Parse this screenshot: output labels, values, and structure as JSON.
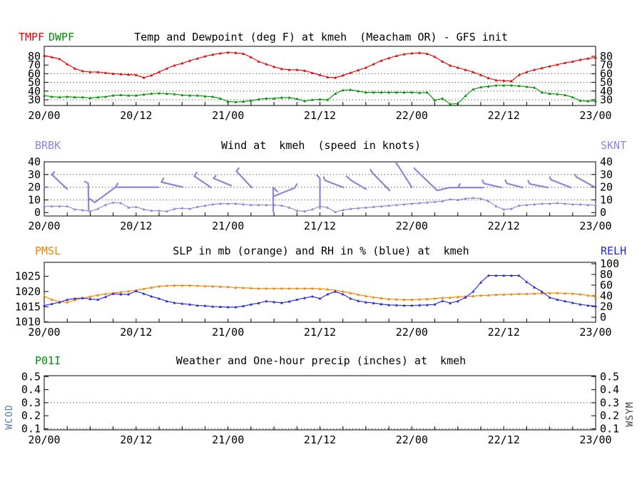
{
  "colors": {
    "red": "#e60000",
    "green": "#009100",
    "purple": "#9184d6",
    "orange": "#f08200",
    "blue": "#2424dd",
    "frame": "#000000",
    "wcod": "#4f7da0",
    "wsym": "#404040"
  },
  "panels": [
    {
      "left_labels": [
        "TMPF",
        "DWPF"
      ],
      "title": "Temp and Dewpoint (deg F) at kmeh  (Meacham OR) - GFS init"
    },
    {
      "left_labels": [
        "BRBK"
      ],
      "right_label": "SKNT",
      "title": "Wind at  kmeh  (speed in knots)"
    },
    {
      "left_labels": [
        "PMSL"
      ],
      "right_label": "RELH",
      "title": "SLP in mb (orange) and RH in % (blue) at  kmeh"
    },
    {
      "left_labels": [
        "P01I"
      ],
      "title": "Weather and One-hour precip (inches) at  kmeh",
      "left_vertical_label": "WCOD",
      "right_vertical_label": "WSYM"
    }
  ],
  "chart_data": {
    "x": {
      "range": [
        0,
        72
      ],
      "tick_every_hours": 3,
      "label_hours": [
        0,
        12,
        24,
        36,
        48,
        60,
        72
      ],
      "labels": [
        "20/00",
        "20/12",
        "21/00",
        "21/12",
        "22/00",
        "22/12",
        "23/00"
      ]
    },
    "panels": [
      {
        "type": "line",
        "title": "Temp and Dewpoint (deg F) at kmeh  (Meacham OR) - GFS init",
        "ylim": [
          23.4,
          91.5
        ],
        "yticks": [
          30,
          40,
          50,
          60,
          70,
          80
        ],
        "grid": [
          30,
          40,
          50,
          60
        ],
        "series": [
          {
            "name": "TMPF",
            "color_key": "red",
            "values": [
              81,
              79,
              77,
              71,
              66,
              63,
              62,
              62,
              61,
              60,
              59.5,
              59,
              58.5,
              55.5,
              58,
              62,
              66,
              69.5,
              72,
              75,
              77.5,
              80,
              82,
              83.5,
              84.5,
              84,
              83,
              79,
              74,
              71,
              68,
              65.5,
              64.5,
              64.5,
              63.5,
              61,
              58.5,
              56,
              55.5,
              58,
              61,
              64,
              67,
              71,
              75,
              78,
              80.5,
              82.5,
              83.5,
              84,
              83,
              79.5,
              74,
              69.5,
              67,
              64.5,
              62,
              58.5,
              55,
              52.5,
              52,
              51.5,
              58.5,
              62,
              64.5,
              66.5,
              68.5,
              70.5,
              72.5,
              74,
              76,
              77.5,
              78.5
            ]
          },
          {
            "name": "DWPF",
            "color_key": "green",
            "values": [
              35,
              33.5,
              33,
              33.5,
              33,
              33,
              32,
              33,
              33.5,
              35,
              35.5,
              35,
              35,
              36,
              37,
              37.5,
              37,
              36.5,
              35.5,
              35,
              35,
              34,
              33.5,
              31.5,
              28,
              27.5,
              28,
              29,
              30.5,
              31.5,
              31.5,
              32.5,
              32.5,
              31,
              28.5,
              30,
              30.5,
              30,
              37,
              41,
              41.5,
              40,
              38.5,
              38.5,
              38.5,
              38.5,
              38.5,
              38.5,
              38.5,
              38,
              38.5,
              29.5,
              31.5,
              25,
              25.5,
              34.5,
              42,
              44.5,
              45.5,
              46.5,
              46.5,
              46.5,
              46,
              45,
              44,
              38.5,
              37,
              36.5,
              35.5,
              33,
              29,
              28.5,
              28.5
            ]
          }
        ]
      },
      {
        "type": "line+barbs",
        "title": "Wind at  kmeh  (speed in knots)",
        "ylim": [
          -2.7,
          40
        ],
        "yticks": [
          0,
          10,
          20,
          30,
          40
        ],
        "grid": [
          10,
          20,
          30
        ],
        "series": [
          {
            "name": "SKNT",
            "color_key": "purple",
            "values": [
              5,
              5,
              5,
              5,
              2.5,
              2,
              1,
              3,
              6,
              8,
              7.5,
              4,
              4.5,
              2.5,
              1.5,
              1.5,
              1,
              3,
              3.5,
              3,
              4.5,
              5.5,
              6.5,
              7,
              7,
              7,
              6.5,
              6,
              6,
              6,
              6,
              5.5,
              4,
              1.5,
              1,
              2.5,
              5,
              4,
              0.5,
              2,
              3,
              3.5,
              4,
              4.5,
              5,
              5.5,
              6,
              6.5,
              7,
              7.5,
              8,
              8.5,
              9,
              10.5,
              10,
              11,
              11.5,
              11,
              9,
              5,
              2.5,
              3,
              5.5,
              6,
              6.5,
              7,
              7,
              7.5,
              7,
              6.5,
              6.5,
              6,
              6
            ]
          }
        ],
        "barbs": [
          [
            [
              0,
              20.5
            ],
            [
              0.35,
              20
            ]
          ],
          [
            [
              1.3,
              32
            ],
            [
              1.0,
              30
            ],
            [
              3.0,
              18.5
            ]
          ],
          [
            [
              5.3,
              24.5
            ],
            [
              5.75,
              23
            ],
            [
              5.8,
              2
            ]
          ],
          [
            [
              5.9,
              11
            ],
            [
              6.6,
              8
            ],
            [
              9.3,
              20
            ]
          ],
          [
            [
              9.6,
              23
            ],
            [
              9.3,
              20
            ],
            [
              14.9,
              20
            ]
          ],
          [
            [
              15.6,
              27
            ],
            [
              15.3,
              24
            ],
            [
              18.1,
              20
            ]
          ],
          [
            [
              19.9,
              31.5
            ],
            [
              19.6,
              28.7
            ],
            [
              21.8,
              19.7
            ]
          ],
          [
            [
              22.4,
              29
            ],
            [
              22.1,
              27
            ],
            [
              24.4,
              21.3
            ]
          ],
          [
            [
              25.4,
              35
            ],
            [
              25.1,
              32.6
            ],
            [
              27.1,
              19.7
            ]
          ],
          [
            [
              30.45,
              16.5
            ],
            [
              29.9,
              19.7
            ],
            [
              29.9,
              0.6
            ]
          ],
          [
            [
              30.0,
              13
            ],
            [
              32.7,
              19.5
            ],
            [
              33.0,
              22.5
            ]
          ],
          [
            [
              35.6,
              29.5
            ],
            [
              36,
              27
            ],
            [
              36,
              3
            ]
          ],
          [
            [
              36.5,
              28
            ],
            [
              36.7,
              25.3
            ],
            [
              39.1,
              19.7
            ]
          ],
          [
            [
              39.5,
              28.5
            ],
            [
              40.1,
              25.3
            ],
            [
              42,
              18.5
            ]
          ],
          [
            [
              42.6,
              33.8
            ],
            [
              42.9,
              31
            ],
            [
              45.1,
              17.4
            ]
          ],
          [
            [
              45.9,
              39.5
            ],
            [
              46.2,
              37
            ],
            [
              48,
              20
            ]
          ],
          [
            [
              48.3,
              35
            ],
            [
              48.5,
              33.7
            ],
            [
              51.3,
              17.4
            ],
            [
              53,
              19.7
            ],
            [
              57.3,
              19.7
            ]
          ],
          [
            [
              54.0,
              19.7
            ],
            [
              54.3,
              22.5
            ]
          ],
          [
            [
              57.2,
              25.5
            ],
            [
              57.4,
              23
            ],
            [
              59.7,
              19.7
            ]
          ],
          [
            [
              60.2,
              25.5
            ],
            [
              60.4,
              23
            ],
            [
              62.5,
              19.7
            ]
          ],
          [
            [
              63.2,
              25
            ],
            [
              63.4,
              22.5
            ],
            [
              65.8,
              19.7
            ]
          ],
          [
            [
              66.0,
              28
            ],
            [
              66.2,
              25.8
            ],
            [
              68.8,
              19.7
            ]
          ],
          [
            [
              69.3,
              30
            ],
            [
              69.5,
              28
            ],
            [
              71.8,
              20.3
            ]
          ]
        ]
      },
      {
        "type": "line",
        "title": "SLP in mb (orange) and RH in % (blue) at  kmeh",
        "ylim_left": [
          1009.9,
          1029.6
        ],
        "ylim_right": [
          -9.3,
          102.7
        ],
        "yticks_left": [
          1010,
          1015,
          1020,
          1025
        ],
        "yticks_right": [
          0,
          20,
          40,
          60,
          80,
          100
        ],
        "grid": [],
        "series": [
          {
            "name": "PMSL",
            "color_key": "orange",
            "axis": "left",
            "values": [
              1018.5,
              1017.3,
              1016.6,
              1016.5,
              1017.2,
              1017.8,
              1018.3,
              1018.8,
              1019.2,
              1019.5,
              1019.8,
              1020.1,
              1020.4,
              1020.9,
              1021.3,
              1021.7,
              1021.9,
              1022,
              1022,
              1022,
              1021.9,
              1021.8,
              1021.7,
              1021.6,
              1021.5,
              1021.3,
              1021.2,
              1021.1,
              1021,
              1021,
              1021,
              1021,
              1021,
              1021,
              1021,
              1021,
              1020.9,
              1020.7,
              1020.4,
              1020,
              1019.5,
              1019,
              1018.5,
              1018.1,
              1017.8,
              1017.5,
              1017.4,
              1017.3,
              1017.3,
              1017.4,
              1017.5,
              1017.7,
              1017.9,
              1018,
              1018.2,
              1018.4,
              1018.5,
              1018.7,
              1018.8,
              1018.9,
              1019,
              1019.1,
              1019.2,
              1019.2,
              1019.3,
              1019.4,
              1019.5,
              1019.5,
              1019.4,
              1019.3,
              1019.1,
              1018.7,
              1018.3
            ]
          },
          {
            "name": "RELH",
            "color_key": "blue",
            "axis": "right",
            "values": [
              22,
              25,
              28,
              33,
              35,
              36,
              34,
              33,
              38,
              44,
              43,
              43,
              49,
              44,
              39,
              35,
              30,
              27,
              25.5,
              24,
              22,
              21.5,
              20,
              19.5,
              19,
              19,
              21,
              24,
              26.5,
              30,
              28.5,
              27,
              29.5,
              33,
              36,
              39,
              35,
              43,
              48,
              43,
              35,
              30.5,
              28,
              26.5,
              24.5,
              23,
              22.5,
              22,
              22,
              22.5,
              23,
              24,
              30.5,
              26.5,
              30,
              37,
              48,
              65,
              78,
              78,
              78,
              78,
              78,
              66,
              56,
              48,
              37,
              33,
              30,
              27,
              24,
              22,
              21
            ]
          }
        ]
      },
      {
        "type": "empty",
        "title": "Weather and One-hour precip (inches) at  kmeh",
        "ylim": [
          0.092,
          0.507
        ],
        "yticks": [
          0.1,
          0.2,
          0.3,
          0.4,
          0.5
        ],
        "grid": [
          0.1,
          0.3
        ],
        "series": []
      }
    ]
  }
}
